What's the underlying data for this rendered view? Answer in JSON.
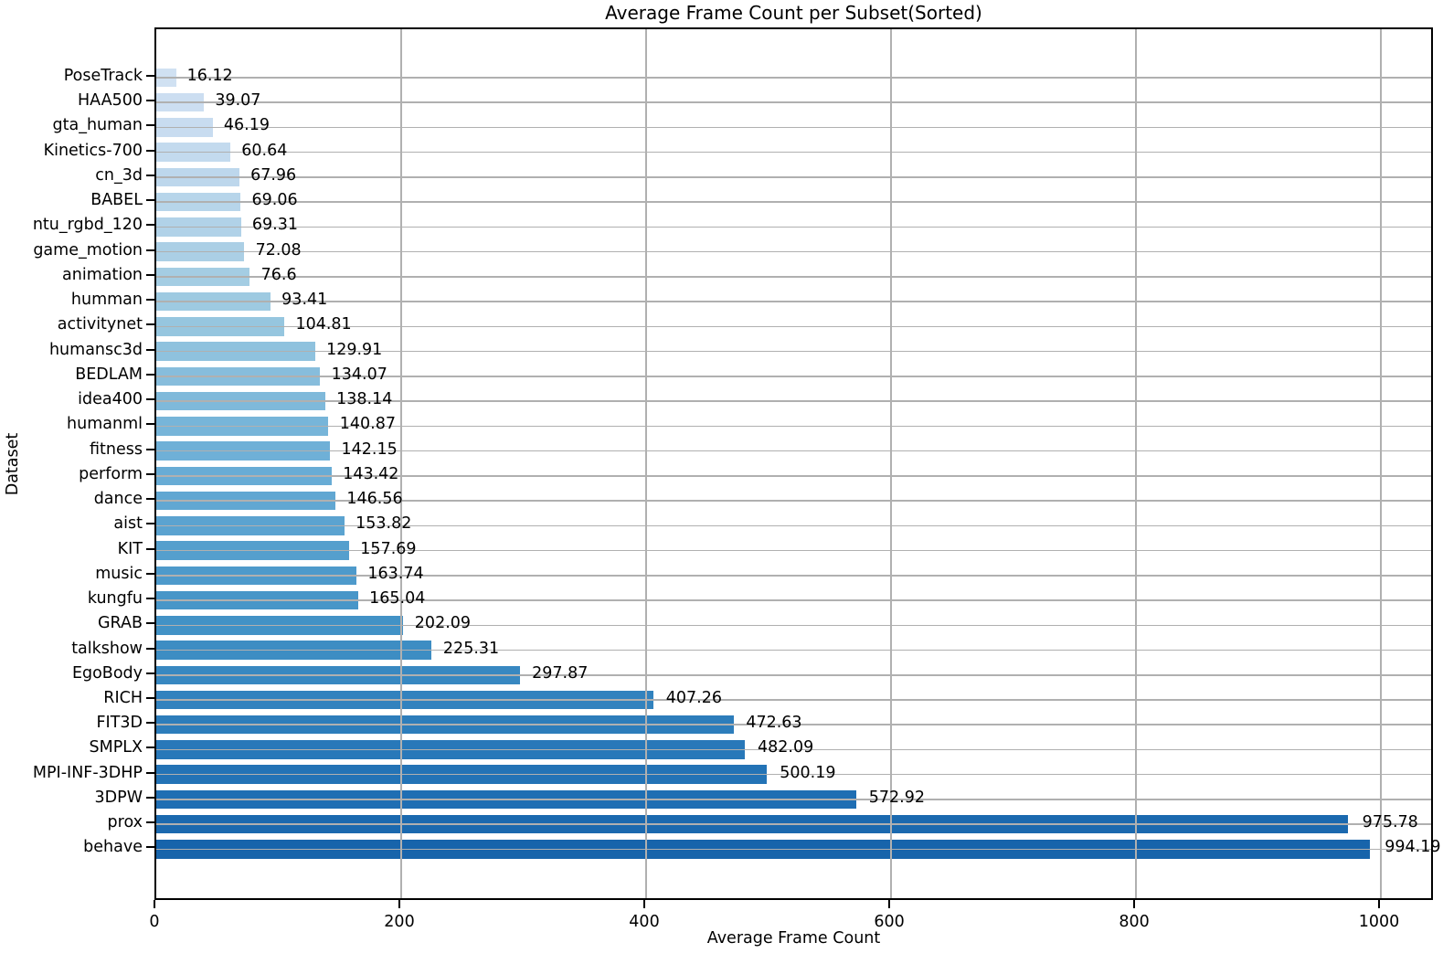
{
  "chart_data": {
    "type": "bar",
    "orientation": "horizontal",
    "title": "Average Frame Count per Subset(Sorted)",
    "xlabel": "Average Frame Count",
    "ylabel": "Dataset",
    "xlim": [
      0,
      1044
    ],
    "xticks": [
      0,
      200,
      400,
      600,
      800,
      1000
    ],
    "xtick_labels": [
      "0",
      "200",
      "400",
      "600",
      "800",
      "1000"
    ],
    "grid": true,
    "legend": "none",
    "categories": [
      "PoseTrack",
      "HAA500",
      "gta_human",
      "Kinetics-700",
      "cn_3d",
      "BABEL",
      "ntu_rgbd_120",
      "game_motion",
      "animation",
      "humman",
      "activitynet",
      "humansc3d",
      "BEDLAM",
      "idea400",
      "humanml",
      "fitness",
      "perform",
      "dance",
      "aist",
      "KIT",
      "music",
      "kungfu",
      "GRAB",
      "talkshow",
      "EgoBody",
      "RICH",
      "FIT3D",
      "SMPLX",
      "MPI-INF-3DHP",
      "3DPW",
      "prox",
      "behave"
    ],
    "values": [
      16.12,
      39.07,
      46.19,
      60.64,
      67.96,
      69.06,
      69.31,
      72.08,
      76.6,
      93.41,
      104.81,
      129.91,
      134.07,
      138.14,
      140.87,
      142.15,
      143.42,
      146.56,
      153.82,
      157.69,
      163.74,
      165.04,
      202.09,
      225.31,
      297.87,
      407.26,
      472.63,
      482.09,
      500.19,
      572.92,
      975.78,
      994.19
    ],
    "value_labels": [
      "16.12",
      "39.07",
      "46.19",
      "60.64",
      "67.96",
      "69.06",
      "69.31",
      "72.08",
      "76.6",
      "93.41",
      "104.81",
      "129.91",
      "134.07",
      "138.14",
      "140.87",
      "142.15",
      "143.42",
      "146.56",
      "153.82",
      "157.69",
      "163.74",
      "165.04",
      "202.09",
      "225.31",
      "297.87",
      "407.26",
      "472.63",
      "482.09",
      "500.19",
      "572.92",
      "975.78",
      "994.19"
    ],
    "bar_colors": [
      "#d0e1f2",
      "#ccdef1",
      "#c8dcf0",
      "#c3daee",
      "#bdd7ec",
      "#b7d5ea",
      "#b1d2e8",
      "#abcfe5",
      "#a4cde3",
      "#9ecae1",
      "#96c6df",
      "#8fc2de",
      "#87bddc",
      "#7fb9da",
      "#77b5d9",
      "#6fb0d7",
      "#68acd5",
      "#61a7d2",
      "#5ba3d0",
      "#559fcd",
      "#4e9acb",
      "#4896c8",
      "#4292c6",
      "#3d8dc3",
      "#3888c1",
      "#3282be",
      "#2d7dbb",
      "#2878b9",
      "#2373b6",
      "#1f6eb3",
      "#1b69af",
      "#1764ab"
    ]
  },
  "colors": {
    "grid": "#b0b0b0",
    "spine": "#000000",
    "text": "#000000",
    "background": "#ffffff"
  }
}
